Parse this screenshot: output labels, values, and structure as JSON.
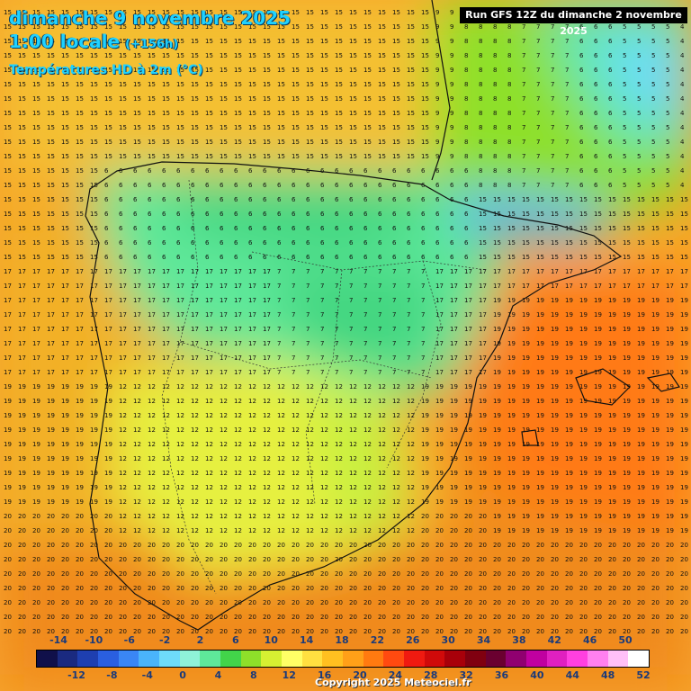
{
  "header": {
    "date_line": "dimanche 9 novembre 2025",
    "time_line": "1:00 locale",
    "lead_time": "(+156h)",
    "parameter": "Températures HD à 2m (°C)"
  },
  "run_info": "Run GFS 12Z du dimanche 2 novembre 2025",
  "legend": {
    "upper_ticks": [
      "-14",
      "-10",
      "-6",
      "-2",
      "2",
      "6",
      "10",
      "14",
      "18",
      "22",
      "26",
      "30",
      "34",
      "38",
      "42",
      "46",
      "50"
    ],
    "lower_ticks": [
      "-12",
      "-8",
      "-4",
      "0",
      "4",
      "8",
      "12",
      "16",
      "20",
      "24",
      "28",
      "32",
      "36",
      "40",
      "44",
      "48",
      "52"
    ],
    "colors": [
      "#10104a",
      "#1a2a80",
      "#1e3fb0",
      "#2a5fe0",
      "#3a86f5",
      "#4ab4fb",
      "#6edcfa",
      "#8ff2d8",
      "#5ee89a",
      "#42d44a",
      "#8ee02a",
      "#d6f032",
      "#ffff66",
      "#ffe040",
      "#ffc020",
      "#ffa018",
      "#ff7a10",
      "#ff4a10",
      "#f01a10",
      "#d00a0a",
      "#a8000a",
      "#800010",
      "#6a0030",
      "#900070",
      "#c000a0",
      "#e020c0",
      "#ff40e0",
      "#ff80f0",
      "#ffc0f8",
      "#ffffff"
    ]
  },
  "copyright": "Copyright 2025 Meteociel.fr"
}
